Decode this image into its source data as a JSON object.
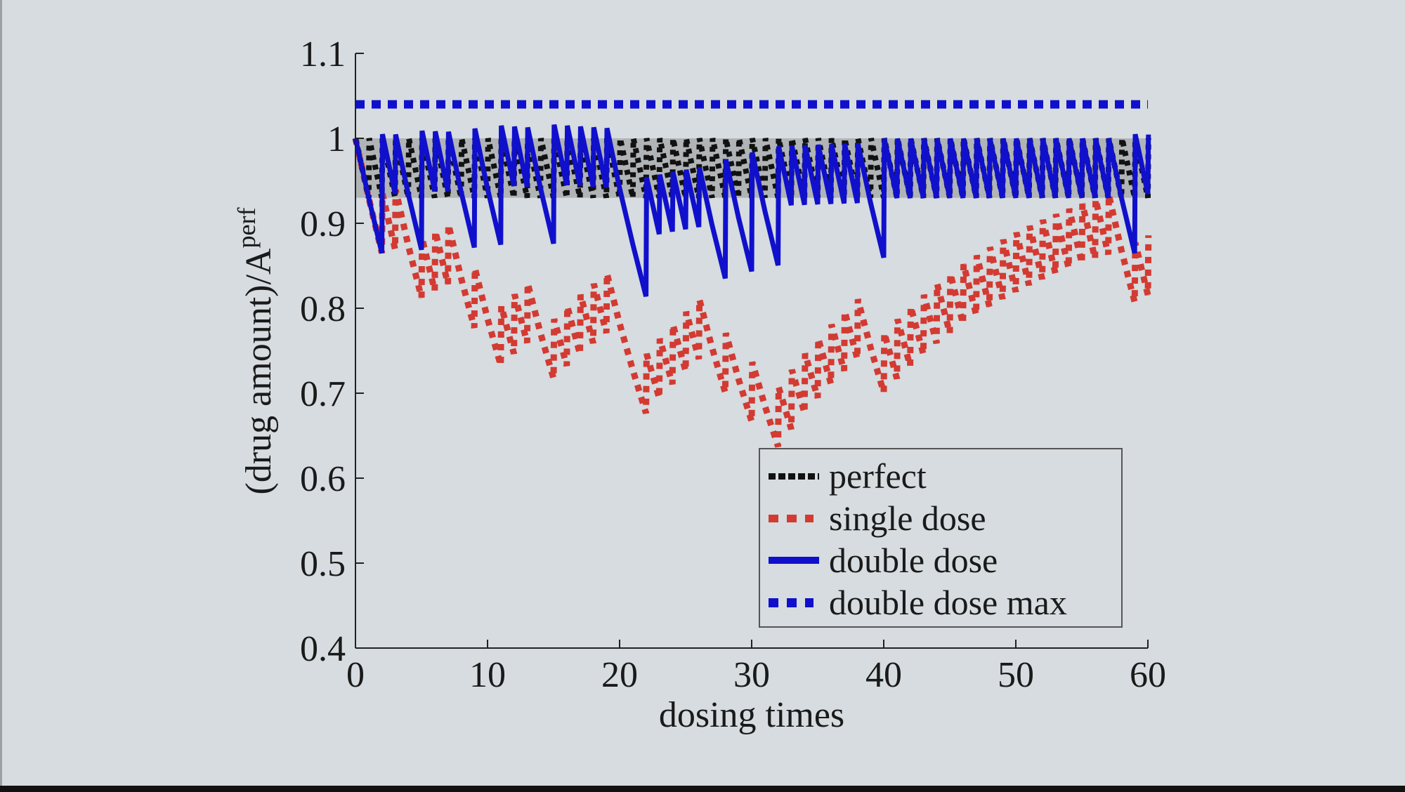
{
  "chart_data": {
    "type": "line",
    "title": "",
    "xlabel": "dosing times",
    "ylabel": "(drug amount)/A",
    "ylabel_superscript": "perf",
    "xlim": [
      0,
      60
    ],
    "ylim": [
      0.4,
      1.1
    ],
    "xticks": [
      "0",
      "10",
      "20",
      "30",
      "40",
      "50",
      "60"
    ],
    "yticks": [
      "0.4",
      "0.5",
      "0.6",
      "0.7",
      "0.8",
      "0.9",
      "1",
      "1.1"
    ],
    "therapeutic_band": [
      0.93,
      1.0
    ],
    "model": {
      "decay_factor_per_interval": 0.93,
      "dose": 0.07,
      "initial_amount": 1.0,
      "missed_dose_times": [
        1,
        4,
        8,
        10,
        14,
        20,
        21,
        27,
        29,
        31,
        39,
        58
      ]
    },
    "series": [
      {
        "name": "perfect",
        "style": "dotted",
        "color": "#111111",
        "rule": "every dose taken"
      },
      {
        "name": "single dose",
        "style": "dashed",
        "color": "#d33a32",
        "rule": "missed doses skipped"
      },
      {
        "name": "double dose",
        "style": "solid",
        "color": "#1010cc",
        "rule": "double dose after a missed dose"
      },
      {
        "name": "double dose max",
        "style": "dashed",
        "color": "#1010cc",
        "constant": 1.04
      }
    ],
    "legend_position": "bottom-right",
    "grid": false
  }
}
